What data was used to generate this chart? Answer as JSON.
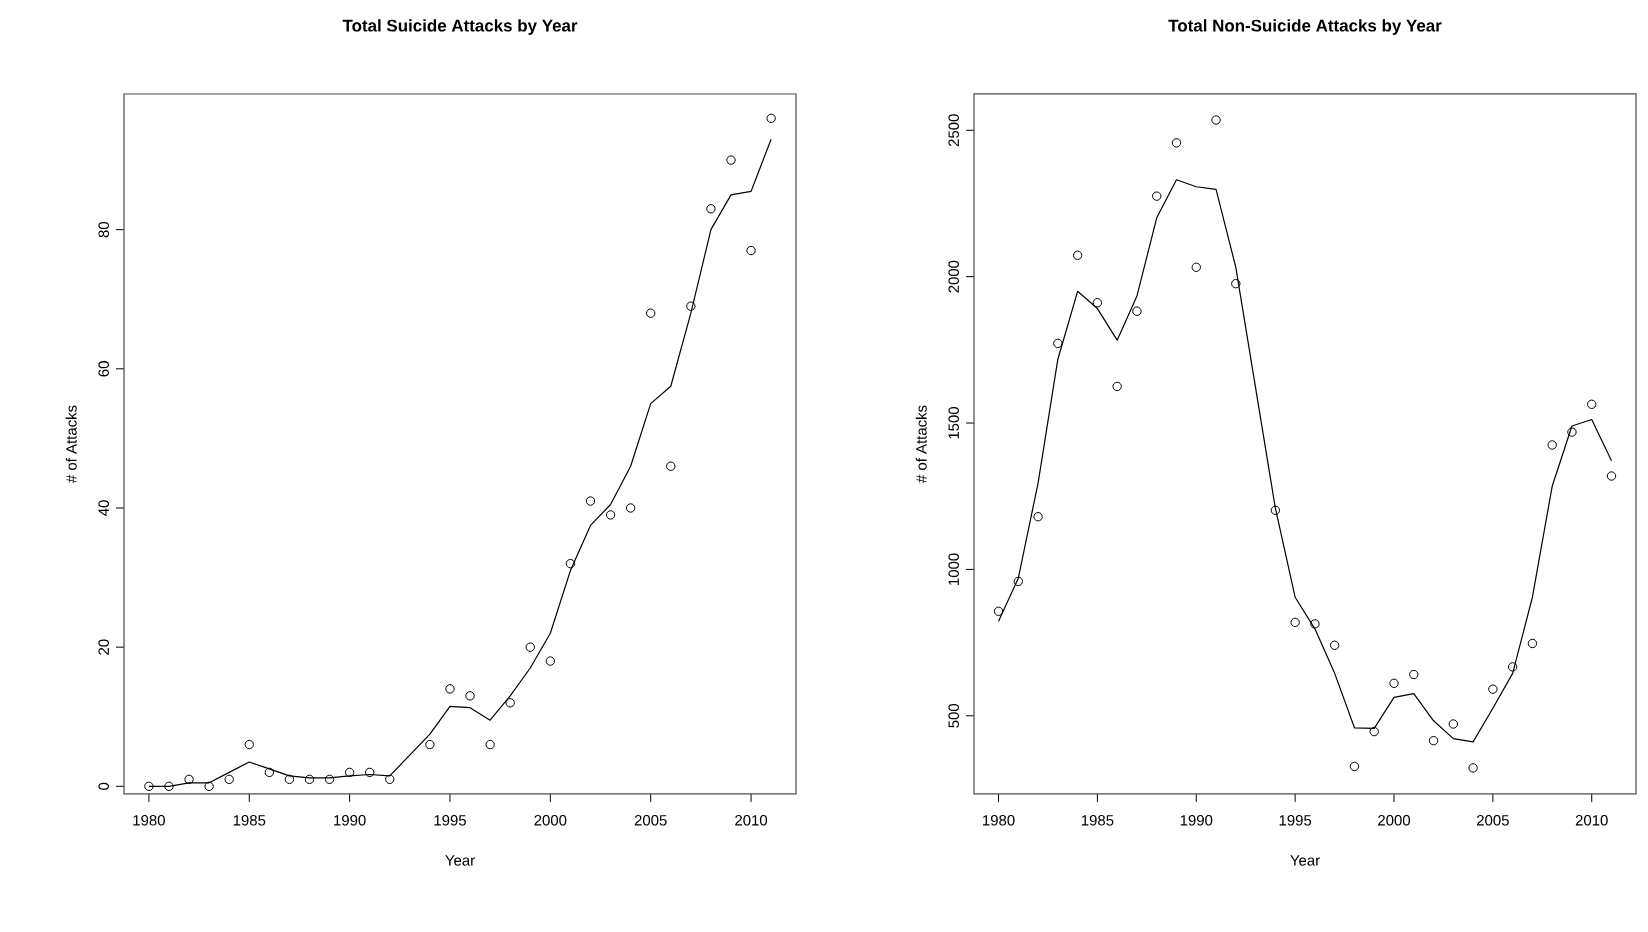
{
  "chart_data": [
    {
      "type": "scatter",
      "title": "Total Suicide Attacks by Year",
      "xlabel": "Year",
      "ylabel": "# of Attacks",
      "grid": false,
      "xlim": [
        1978.76,
        2012.24
      ],
      "ylim": [
        -1.1,
        99.5
      ],
      "xticks": [
        1980,
        1985,
        1990,
        1995,
        2000,
        2005,
        2010
      ],
      "yticks": [
        0,
        20,
        40,
        60,
        80
      ],
      "series": [
        {
          "marker": "circle",
          "color": "#000000",
          "x": [
            1980,
            1981,
            1982,
            1983,
            1984,
            1985,
            1986,
            1987,
            1988,
            1989,
            1990,
            1991,
            1992,
            1994,
            1995,
            1996,
            1997,
            1998,
            1999,
            2000,
            2001,
            2002,
            2003,
            2004,
            2005,
            2006,
            2007,
            2008,
            2009,
            2010,
            2011
          ],
          "values": [
            0,
            0,
            1,
            0,
            1,
            6,
            2,
            1,
            1,
            1,
            2,
            2,
            1,
            6,
            14,
            13,
            6,
            12,
            20,
            18,
            32,
            41,
            39,
            40,
            68,
            46,
            69,
            83,
            90,
            77,
            96
          ]
        },
        {
          "type": "line",
          "color": "#000000",
          "x": [
            1980,
            1981,
            1982,
            1983,
            1984,
            1985,
            1986,
            1987,
            1988,
            1989,
            1990,
            1991,
            1992,
            1994,
            1995,
            1996,
            1997,
            1998,
            1999,
            2000,
            2001,
            2002,
            2003,
            2004,
            2005,
            2006,
            2007,
            2008,
            2009,
            2010,
            2011
          ],
          "values": [
            0,
            0,
            0.5,
            0.5,
            2,
            3.5,
            2.5,
            1.5,
            1.2,
            1.2,
            1.5,
            1.7,
            1.5,
            7.5,
            11.5,
            11.3,
            9.5,
            13,
            17,
            22,
            31,
            37.5,
            40.5,
            46,
            55,
            57.5,
            68,
            80,
            85,
            85.5,
            93
          ]
        }
      ]
    },
    {
      "type": "scatter",
      "title": "Total Non-Suicide Attacks by Year",
      "xlabel": "Year",
      "ylabel": "# of Attacks",
      "grid": false,
      "xlim": [
        1978.76,
        2012.24
      ],
      "ylim": [
        233,
        2624
      ],
      "xticks": [
        1980,
        1985,
        1990,
        1995,
        2000,
        2005,
        2010
      ],
      "yticks": [
        500,
        1000,
        1500,
        2000,
        2500
      ],
      "series": [
        {
          "marker": "circle",
          "color": "#000000",
          "x": [
            1980,
            1981,
            1982,
            1983,
            1984,
            1985,
            1986,
            1987,
            1988,
            1989,
            1990,
            1991,
            1992,
            1994,
            1995,
            1996,
            1997,
            1998,
            1999,
            2000,
            2001,
            2002,
            2003,
            2004,
            2005,
            2006,
            2007,
            2008,
            2009,
            2010,
            2011
          ],
          "values": [
            857,
            959,
            1180,
            1772,
            2073,
            1911,
            1625,
            1882,
            2275,
            2457,
            2032,
            2535,
            1976,
            1202,
            819,
            814,
            741,
            327,
            446,
            611,
            641,
            415,
            472,
            322,
            591,
            667,
            747,
            1425,
            1469,
            1564,
            1319
          ]
        },
        {
          "type": "line",
          "color": "#000000",
          "x": [
            1980,
            1981,
            1982,
            1983,
            1984,
            1985,
            1986,
            1987,
            1988,
            1989,
            1990,
            1991,
            1992,
            1994,
            1995,
            1996,
            1997,
            1998,
            1999,
            2000,
            2001,
            2002,
            2003,
            2004,
            2005,
            2006,
            2007,
            2008,
            2009,
            2010,
            2011
          ],
          "values": [
            823,
            970,
            1295,
            1718,
            1950,
            1891,
            1783,
            1934,
            2201,
            2331,
            2307,
            2298,
            2032,
            1209,
            905,
            797,
            645,
            459,
            457,
            563,
            576,
            483,
            422,
            411,
            526,
            645,
            905,
            1284,
            1490,
            1512,
            1371
          ]
        }
      ]
    }
  ]
}
